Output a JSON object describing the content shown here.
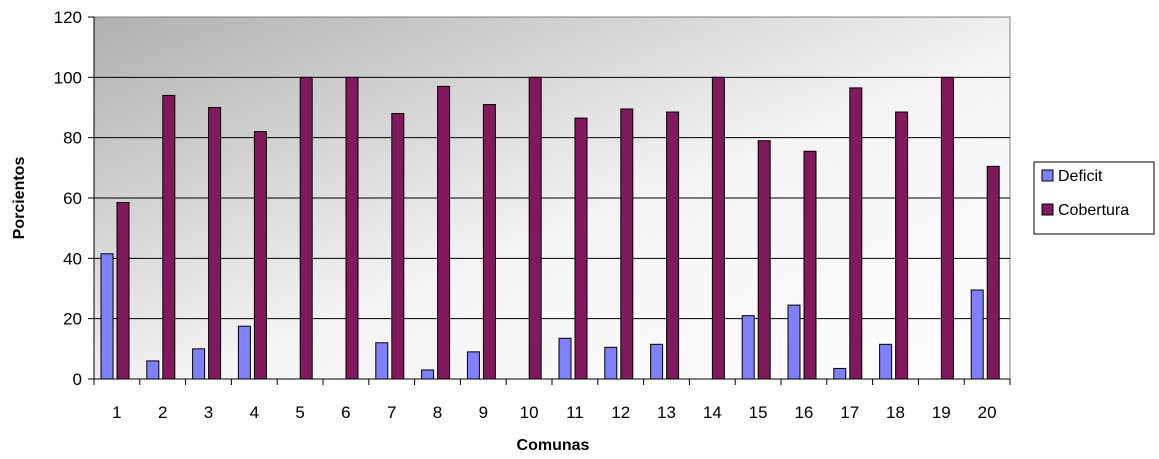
{
  "chart_data": {
    "type": "bar",
    "xlabel": "Comunas",
    "ylabel": "Porcientos",
    "ylim": [
      0,
      120
    ],
    "yticks": [
      0,
      20,
      40,
      60,
      80,
      100,
      120
    ],
    "categories": [
      "1",
      "2",
      "3",
      "4",
      "5",
      "6",
      "7",
      "8",
      "9",
      "10",
      "11",
      "12",
      "13",
      "14",
      "15",
      "16",
      "17",
      "18",
      "19",
      "20"
    ],
    "series": [
      {
        "name": "Deficit",
        "color": "#8080ff",
        "values": [
          41.5,
          6,
          10,
          17.5,
          0,
          0,
          12,
          3,
          9,
          0,
          13.5,
          10.5,
          11.5,
          0,
          21,
          24.5,
          3.5,
          11.5,
          0,
          29.5
        ]
      },
      {
        "name": "Cobertura",
        "color": "#801a5c",
        "values": [
          58.5,
          94,
          90,
          82,
          100,
          100,
          88,
          97,
          91,
          100,
          86.5,
          89.5,
          88.5,
          100,
          79,
          75.5,
          96.5,
          88.5,
          100,
          70.5
        ]
      }
    ],
    "grid": true,
    "legend_position": "right",
    "background": "gradient-gray"
  }
}
